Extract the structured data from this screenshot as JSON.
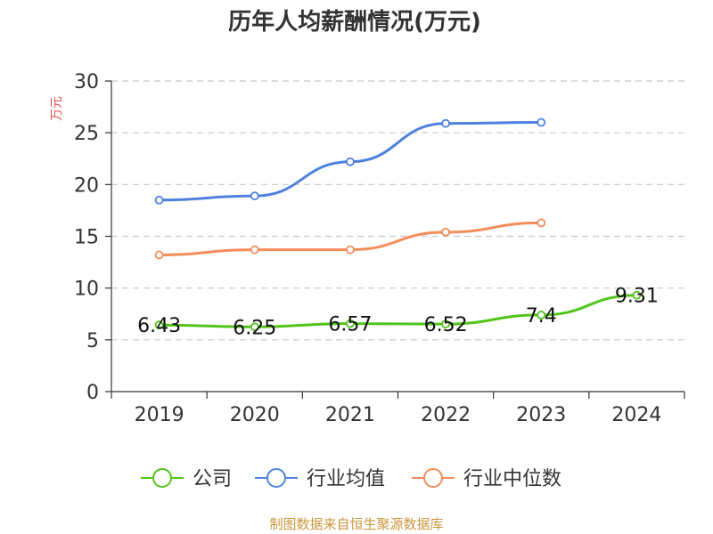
{
  "chart_data": {
    "type": "line",
    "title": "历年人均薪酬情况(万元)",
    "ylabel": "万元",
    "xlabel": "",
    "categories": [
      "2019",
      "2020",
      "2021",
      "2022",
      "2023",
      "2024"
    ],
    "ylim": [
      0,
      30
    ],
    "yticks": [
      0,
      5,
      10,
      15,
      20,
      25,
      30
    ],
    "grid": true,
    "legend_position": "bottom",
    "series": [
      {
        "name": "公司",
        "color": "#52c41a",
        "values": [
          6.43,
          6.25,
          6.57,
          6.52,
          7.4,
          9.31
        ],
        "show_labels": true
      },
      {
        "name": "行业均值",
        "color": "#4f81e0",
        "values": [
          18.5,
          18.9,
          22.2,
          25.9,
          26.0,
          null
        ],
        "show_labels": false
      },
      {
        "name": "行业中位数",
        "color": "#f58c5b",
        "values": [
          13.2,
          13.7,
          13.7,
          15.4,
          16.3,
          null
        ],
        "show_labels": false
      }
    ],
    "data_labels": [
      "6.43",
      "6.25",
      "6.57",
      "6.52",
      "7.4",
      "9.31"
    ]
  },
  "source": "制图数据来自恒生聚源数据库",
  "colors": {
    "ylabel": "#e05050",
    "source": "#c8963c",
    "axis": "#333333",
    "grid": "#c8c8c8"
  }
}
